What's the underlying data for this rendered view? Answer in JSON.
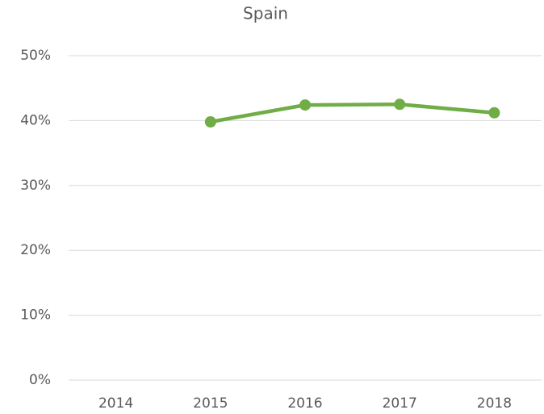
{
  "chart_data": {
    "type": "line",
    "title": "Spain",
    "categories": [
      "2014",
      "2015",
      "2016",
      "2017",
      "2018"
    ],
    "values": [
      null,
      39.8,
      42.4,
      42.5,
      41.2
    ],
    "color": "#70ad47",
    "ylim": [
      0,
      50
    ],
    "yticks": [
      {
        "value": 0,
        "label": "0%"
      },
      {
        "value": 10,
        "label": "10%"
      },
      {
        "value": 20,
        "label": "20%"
      },
      {
        "value": 30,
        "label": "30%"
      },
      {
        "value": 40,
        "label": "40%"
      },
      {
        "value": 50,
        "label": "50%"
      }
    ],
    "grid": true
  }
}
